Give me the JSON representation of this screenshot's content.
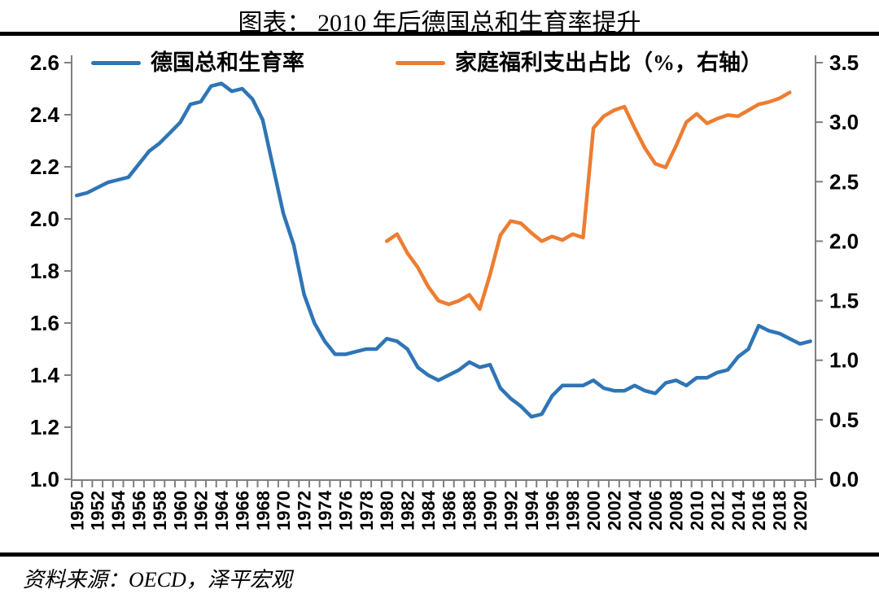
{
  "title": "图表： 2010 年后德国总和生育率提升",
  "source_note": "资料来源：OECD，泽平宏观",
  "colors": {
    "fertility_line": "#2E75B6",
    "welfare_line": "#ED7D31",
    "axis_gray": "#7F7F7F",
    "divider_black": "#000000",
    "text_black": "#000000",
    "background": "#FFFFFF"
  },
  "chart_data": {
    "type": "line",
    "title": "图表： 2010 年后德国总和生育率提升",
    "grid": false,
    "legend_position": "top-inside",
    "x": {
      "min": 1950,
      "max": 2021,
      "tick_interval": 1,
      "label_interval": 2,
      "labels": [
        "1950",
        "1952",
        "1954",
        "1956",
        "1958",
        "1960",
        "1962",
        "1964",
        "1966",
        "1968",
        "1970",
        "1972",
        "1974",
        "1976",
        "1978",
        "1980",
        "1982",
        "1984",
        "1986",
        "1988",
        "1990",
        "1992",
        "1994",
        "1996",
        "1998",
        "2000",
        "2002",
        "2004",
        "2006",
        "2008",
        "2010",
        "2012",
        "2014",
        "2016",
        "2018",
        "2020"
      ]
    },
    "left_axis": {
      "min": 1.0,
      "max": 2.6,
      "step": 0.2,
      "ticks": [
        "1.0",
        "1.2",
        "1.4",
        "1.6",
        "1.8",
        "2.0",
        "2.2",
        "2.4",
        "2.6"
      ]
    },
    "right_axis": {
      "min": 0.0,
      "max": 3.5,
      "step": 0.5,
      "ticks": [
        "0.0",
        "0.5",
        "1.0",
        "1.5",
        "2.0",
        "2.5",
        "3.0",
        "3.5"
      ]
    },
    "series": [
      {
        "name": "德国总和生育率",
        "axis": "left",
        "color": "#2E75B6",
        "start_year": 1950,
        "values": [
          2.09,
          2.1,
          2.12,
          2.14,
          2.15,
          2.16,
          2.21,
          2.26,
          2.29,
          2.33,
          2.37,
          2.44,
          2.45,
          2.51,
          2.52,
          2.49,
          2.5,
          2.46,
          2.38,
          2.2,
          2.02,
          1.9,
          1.71,
          1.6,
          1.53,
          1.48,
          1.48,
          1.49,
          1.5,
          1.5,
          1.54,
          1.53,
          1.5,
          1.43,
          1.4,
          1.38,
          1.4,
          1.42,
          1.45,
          1.43,
          1.44,
          1.35,
          1.31,
          1.28,
          1.24,
          1.25,
          1.32,
          1.36,
          1.36,
          1.36,
          1.38,
          1.35,
          1.34,
          1.34,
          1.36,
          1.34,
          1.33,
          1.37,
          1.38,
          1.36,
          1.39,
          1.39,
          1.41,
          1.42,
          1.47,
          1.5,
          1.59,
          1.57,
          1.56,
          1.54,
          1.52,
          1.53
        ]
      },
      {
        "name": "家庭福利支出占比（%，右轴）",
        "axis": "right",
        "color": "#ED7D31",
        "start_year": 1980,
        "values": [
          2.0,
          2.06,
          1.9,
          1.78,
          1.62,
          1.5,
          1.47,
          1.5,
          1.55,
          1.43,
          1.72,
          2.05,
          2.17,
          2.15,
          2.07,
          2.0,
          2.04,
          2.01,
          2.06,
          2.03,
          2.95,
          3.05,
          3.1,
          3.13,
          2.95,
          2.78,
          2.65,
          2.62,
          2.8,
          3.0,
          3.07,
          2.99,
          3.03,
          3.06,
          3.05,
          3.1,
          3.15,
          3.17,
          3.2,
          3.25
        ]
      }
    ]
  }
}
